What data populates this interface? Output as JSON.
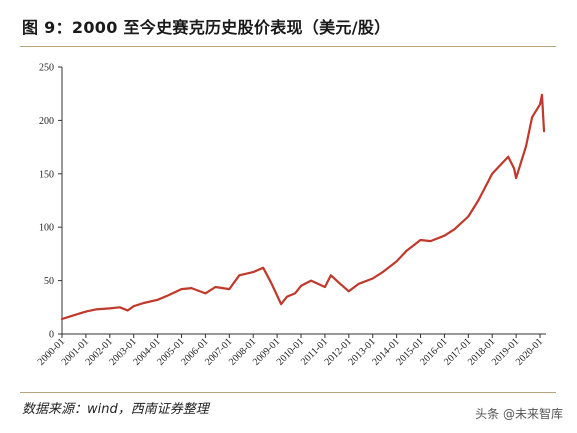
{
  "figure": {
    "title": "图 9：2000 至今史赛克历史股价表现（美元/股）",
    "source": "数据来源：wind，西南证券整理",
    "watermark": "头条 @未来智库"
  },
  "chart_data": {
    "type": "line",
    "title": "",
    "xlabel": "",
    "ylabel": "",
    "ylim": [
      0,
      250
    ],
    "yticks": [
      0,
      50,
      100,
      150,
      200,
      250
    ],
    "xticks": [
      "2000-01",
      "2001-01",
      "2002-01",
      "2003-01",
      "2004-01",
      "2005-01",
      "2006-01",
      "2007-01",
      "2008-01",
      "2009-01",
      "2010-01",
      "2011-01",
      "2012-01",
      "2013-01",
      "2014-01",
      "2015-01",
      "2016-01",
      "2017-01",
      "2018-01",
      "2019-01",
      "2020-01"
    ],
    "grid": false,
    "legend": "none",
    "series": [
      {
        "color": "#c0392b",
        "x": [
          "2000-01",
          "2000-06",
          "2001-01",
          "2001-06",
          "2002-01",
          "2002-06",
          "2002-10",
          "2003-01",
          "2003-06",
          "2004-01",
          "2004-06",
          "2005-01",
          "2005-06",
          "2006-01",
          "2006-06",
          "2007-01",
          "2007-06",
          "2008-01",
          "2008-06",
          "2008-10",
          "2009-03",
          "2009-06",
          "2009-10",
          "2010-01",
          "2010-06",
          "2011-01",
          "2011-04",
          "2011-08",
          "2012-01",
          "2012-06",
          "2013-01",
          "2013-06",
          "2014-01",
          "2014-06",
          "2015-01",
          "2015-06",
          "2016-01",
          "2016-06",
          "2017-01",
          "2017-06",
          "2018-01",
          "2018-06",
          "2018-09",
          "2018-12",
          "2019-01",
          "2019-06",
          "2019-09",
          "2020-01",
          "2020-02",
          "2020-03"
        ],
        "values": [
          14,
          17,
          21,
          23,
          24,
          25,
          22,
          26,
          29,
          32,
          36,
          42,
          43,
          38,
          44,
          42,
          55,
          58,
          62,
          48,
          28,
          35,
          38,
          45,
          50,
          44,
          55,
          48,
          40,
          47,
          52,
          58,
          68,
          78,
          88,
          87,
          92,
          98,
          110,
          125,
          150,
          160,
          166,
          155,
          146,
          176,
          203,
          215,
          224,
          190
        ]
      }
    ]
  }
}
